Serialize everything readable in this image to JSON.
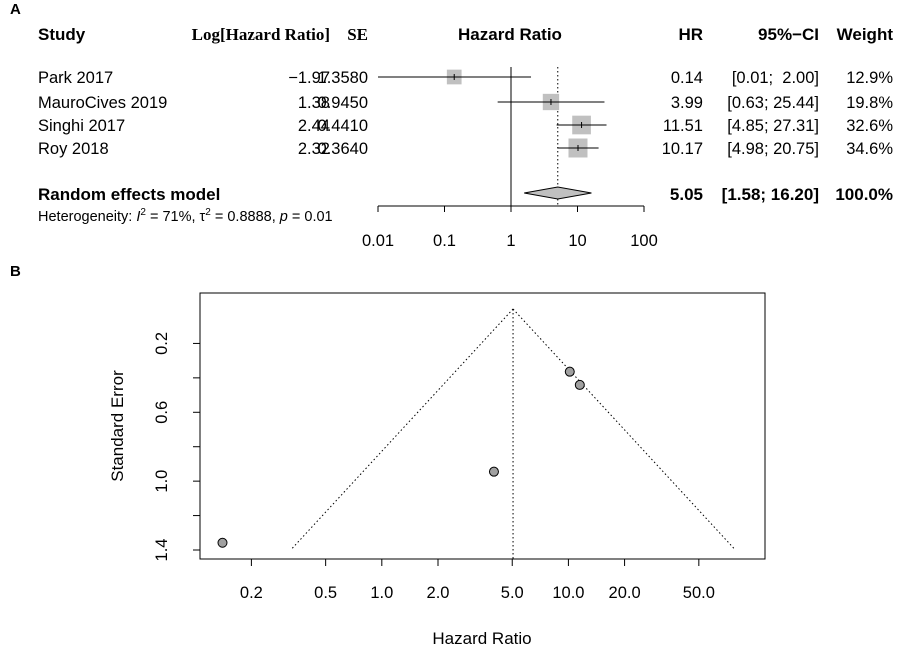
{
  "panel_a": {
    "letter": "A",
    "headers": {
      "study": "Study",
      "log_hr": "Log[Hazard Ratio]",
      "se": "SE",
      "hazard_ratio": "Hazard Ratio",
      "hr": "HR",
      "ci": "95%−CI",
      "weight": "Weight"
    },
    "model_label": "Random effects model",
    "model_hr": "5.05",
    "model_ci": "[1.58; 16.20]",
    "model_weight": "100.0%",
    "heterogeneity": {
      "prefix": "Heterogeneity: ",
      "i2_symbol": "I",
      "i2_sup": "2",
      "i2_value": " = 71%, ",
      "tau_symbol": "τ",
      "tau_sup": "2",
      "tau_value": " = 0.8888, ",
      "p_symbol": "p",
      "p_value": " = 0.01"
    }
  },
  "panel_b": {
    "letter": "B",
    "xlabel": "Hazard Ratio",
    "ylabel": "Standard Error"
  },
  "chart_data": [
    {
      "type": "forest",
      "xscale": "log",
      "xlim": [
        0.01,
        100
      ],
      "xticks": [
        0.01,
        0.1,
        1,
        10,
        100
      ],
      "xtick_labels": [
        "0.01",
        "0.1",
        "1",
        "10",
        "100"
      ],
      "studies": [
        {
          "name": "Park 2017",
          "log_hr": "−1.97",
          "se": "1.3580",
          "hr": 0.14,
          "lo": 0.01,
          "hi": 2.0,
          "hr_text": "0.14",
          "ci_text": "[0.01;  2.00]",
          "weight": 12.9,
          "weight_text": "12.9%"
        },
        {
          "name": "MauroCives 2019",
          "log_hr": "1.38",
          "se": "0.9450",
          "hr": 3.99,
          "lo": 0.63,
          "hi": 25.44,
          "hr_text": "3.99",
          "ci_text": "[0.63; 25.44]",
          "weight": 19.8,
          "weight_text": "19.8%"
        },
        {
          "name": "Singhi 2017",
          "log_hr": "2.44",
          "se": "0.4410",
          "hr": 11.51,
          "lo": 4.85,
          "hi": 27.31,
          "hr_text": "11.51",
          "ci_text": "[4.85; 27.31]",
          "weight": 32.6,
          "weight_text": "32.6%"
        },
        {
          "name": "Roy 2018",
          "log_hr": "2.32",
          "se": "0.3640",
          "hr": 10.17,
          "lo": 4.98,
          "hi": 20.75,
          "hr_text": "10.17",
          "ci_text": "[4.98; 20.75]",
          "weight": 34.6,
          "weight_text": "34.6%"
        }
      ],
      "pooled": {
        "hr": 5.05,
        "lo": 1.58,
        "hi": 16.2
      },
      "null_line": 1,
      "square_color": "#c0c0c0",
      "diamond_color": "#c0c0c0"
    },
    {
      "type": "funnel",
      "xscale": "log",
      "xlim": [
        0.12,
        100
      ],
      "xticks": [
        0.2,
        0.5,
        1.0,
        2.0,
        5.0,
        10.0,
        20.0,
        50.0
      ],
      "xtick_labels": [
        "0.2",
        "0.5",
        "1.0",
        "2.0",
        "5.0",
        "10.0",
        "20.0",
        "50.0"
      ],
      "ylim": [
        1.4,
        0
      ],
      "yticks": [
        0.2,
        0.6,
        1.0,
        1.4
      ],
      "ytick_labels": [
        "0.2",
        "0.6",
        "1.0",
        "1.4"
      ],
      "pooled_hr": 5.05,
      "points": [
        {
          "hr": 0.14,
          "se": 1.358
        },
        {
          "hr": 3.99,
          "se": 0.945
        },
        {
          "hr": 11.51,
          "se": 0.441
        },
        {
          "hr": 10.17,
          "se": 0.364
        }
      ],
      "point_color": "#a0a0a0"
    }
  ]
}
